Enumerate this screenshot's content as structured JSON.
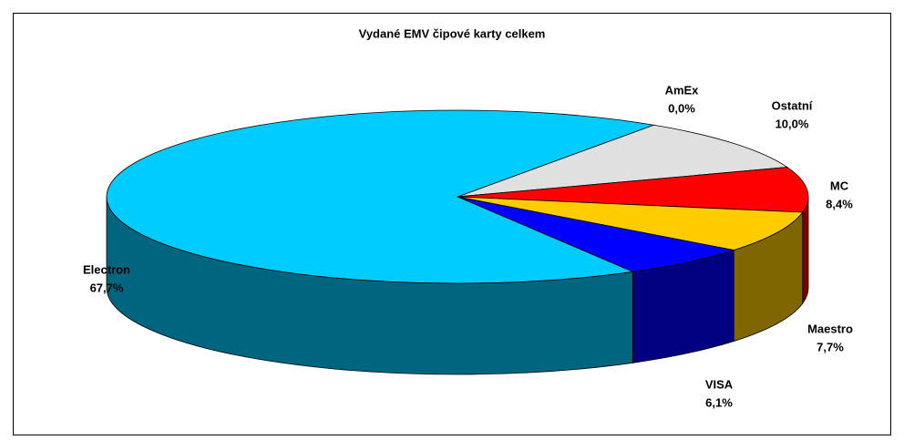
{
  "chart_data": {
    "type": "pie3d",
    "title": "Vydané EMV čipové karty celkem",
    "categories": [
      "AmEx",
      "Ostatní",
      "MC",
      "Maestro",
      "VISA",
      "Electron"
    ],
    "values": [
      0.0,
      10.0,
      8.4,
      7.7,
      6.1,
      67.7
    ],
    "value_labels": [
      "0,0%",
      "10,0%",
      "8,4%",
      "7,7%",
      "6,1%",
      "67,7%"
    ],
    "colors": [
      "#808080",
      "#e0e0e0",
      "#ff0000",
      "#ffcc00",
      "#0000ff",
      "#00ccff"
    ],
    "side_colors": [
      "#404040",
      "#707070",
      "#800000",
      "#806600",
      "#000080",
      "#006680"
    ]
  }
}
